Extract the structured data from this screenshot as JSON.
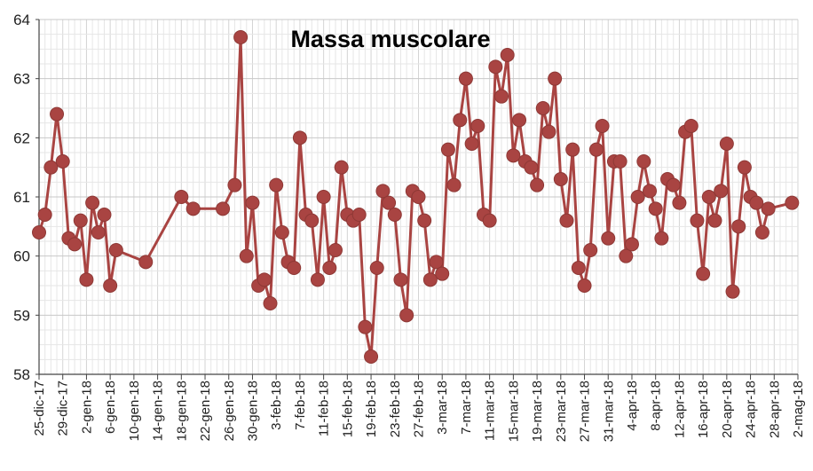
{
  "chart_data": {
    "type": "line",
    "title": "Massa muscolare",
    "xlabel": "",
    "ylabel": "",
    "ylim": [
      58,
      64
    ],
    "yticks": [
      "58",
      "59",
      "60",
      "61",
      "62",
      "63",
      "64"
    ],
    "xticks": [
      "25-dic-17",
      "29-dic-17",
      "2-gen-18",
      "6-gen-18",
      "10-gen-18",
      "14-gen-18",
      "18-gen-18",
      "22-gen-18",
      "26-gen-18",
      "30-gen-18",
      "3-feb-18",
      "7-feb-18",
      "11-feb-18",
      "15-feb-18",
      "19-feb-18",
      "23-feb-18",
      "27-feb-18",
      "3-mar-18",
      "7-mar-18",
      "11-mar-18",
      "15-mar-18",
      "19-mar-18",
      "23-mar-18",
      "27-mar-18",
      "31-mar-18",
      "4-apr-18",
      "8-apr-18",
      "12-apr-18",
      "16-apr-18",
      "20-apr-18",
      "24-apr-18",
      "28-apr-18",
      "2-mag-18"
    ],
    "x_unit": "days since 25-dic-17",
    "grid": true,
    "line_color": "#a94442",
    "marker_color": "#a94442",
    "series": [
      {
        "name": "Massa muscolare",
        "points": [
          [
            0,
            60.4
          ],
          [
            1,
            60.7
          ],
          [
            2,
            61.5
          ],
          [
            3,
            62.4
          ],
          [
            4,
            61.6
          ],
          [
            5,
            60.3
          ],
          [
            6,
            60.2
          ],
          [
            7,
            60.6
          ],
          [
            8,
            59.6
          ],
          [
            9,
            60.9
          ],
          [
            10,
            60.4
          ],
          [
            11,
            60.7
          ],
          [
            12,
            59.5
          ],
          [
            13,
            60.1
          ],
          [
            18,
            59.9
          ],
          [
            24,
            61.0
          ],
          [
            26,
            60.8
          ],
          [
            31,
            60.8
          ],
          [
            33,
            61.2
          ],
          [
            34,
            63.7
          ],
          [
            35,
            60.0
          ],
          [
            36,
            60.9
          ],
          [
            37,
            59.5
          ],
          [
            38,
            59.6
          ],
          [
            39,
            59.2
          ],
          [
            40,
            61.2
          ],
          [
            41,
            60.4
          ],
          [
            42,
            59.9
          ],
          [
            43,
            59.8
          ],
          [
            44,
            62.0
          ],
          [
            45,
            60.7
          ],
          [
            46,
            60.6
          ],
          [
            47,
            59.6
          ],
          [
            48,
            61.0
          ],
          [
            49,
            59.8
          ],
          [
            50,
            60.1
          ],
          [
            51,
            61.5
          ],
          [
            52,
            60.7
          ],
          [
            53,
            60.6
          ],
          [
            54,
            60.7
          ],
          [
            55,
            58.8
          ],
          [
            56,
            58.3
          ],
          [
            57,
            59.8
          ],
          [
            58,
            61.1
          ],
          [
            59,
            60.9
          ],
          [
            60,
            60.7
          ],
          [
            61,
            59.6
          ],
          [
            62,
            59.0
          ],
          [
            63,
            61.1
          ],
          [
            64,
            61.0
          ],
          [
            65,
            60.6
          ],
          [
            66,
            59.6
          ],
          [
            67,
            59.9
          ],
          [
            68,
            59.7
          ],
          [
            69,
            61.8
          ],
          [
            70,
            61.2
          ],
          [
            71,
            62.3
          ],
          [
            72,
            63.0
          ],
          [
            73,
            61.9
          ],
          [
            74,
            62.2
          ],
          [
            75,
            60.7
          ],
          [
            76,
            60.6
          ],
          [
            77,
            63.2
          ],
          [
            78,
            62.7
          ],
          [
            79,
            63.4
          ],
          [
            80,
            61.7
          ],
          [
            81,
            62.3
          ],
          [
            82,
            61.6
          ],
          [
            83,
            61.5
          ],
          [
            84,
            61.2
          ],
          [
            85,
            62.5
          ],
          [
            86,
            62.1
          ],
          [
            87,
            63.0
          ],
          [
            88,
            61.3
          ],
          [
            89,
            60.6
          ],
          [
            90,
            61.8
          ],
          [
            91,
            59.8
          ],
          [
            92,
            59.5
          ],
          [
            93,
            60.1
          ],
          [
            94,
            61.8
          ],
          [
            95,
            62.2
          ],
          [
            96,
            60.3
          ],
          [
            97,
            61.6
          ],
          [
            98,
            61.6
          ],
          [
            99,
            60.0
          ],
          [
            100,
            60.2
          ],
          [
            101,
            61.0
          ],
          [
            102,
            61.6
          ],
          [
            103,
            61.1
          ],
          [
            104,
            60.8
          ],
          [
            105,
            60.3
          ],
          [
            106,
            61.3
          ],
          [
            107,
            61.2
          ],
          [
            108,
            60.9
          ],
          [
            109,
            62.1
          ],
          [
            110,
            62.2
          ],
          [
            111,
            60.6
          ],
          [
            112,
            59.7
          ],
          [
            113,
            61.0
          ],
          [
            114,
            60.6
          ],
          [
            115,
            61.1
          ],
          [
            116,
            61.9
          ],
          [
            117,
            59.4
          ],
          [
            118,
            60.5
          ],
          [
            119,
            61.5
          ],
          [
            120,
            61.0
          ],
          [
            121,
            60.9
          ],
          [
            122,
            60.4
          ],
          [
            123,
            60.8
          ],
          [
            127,
            60.9
          ]
        ]
      }
    ]
  }
}
